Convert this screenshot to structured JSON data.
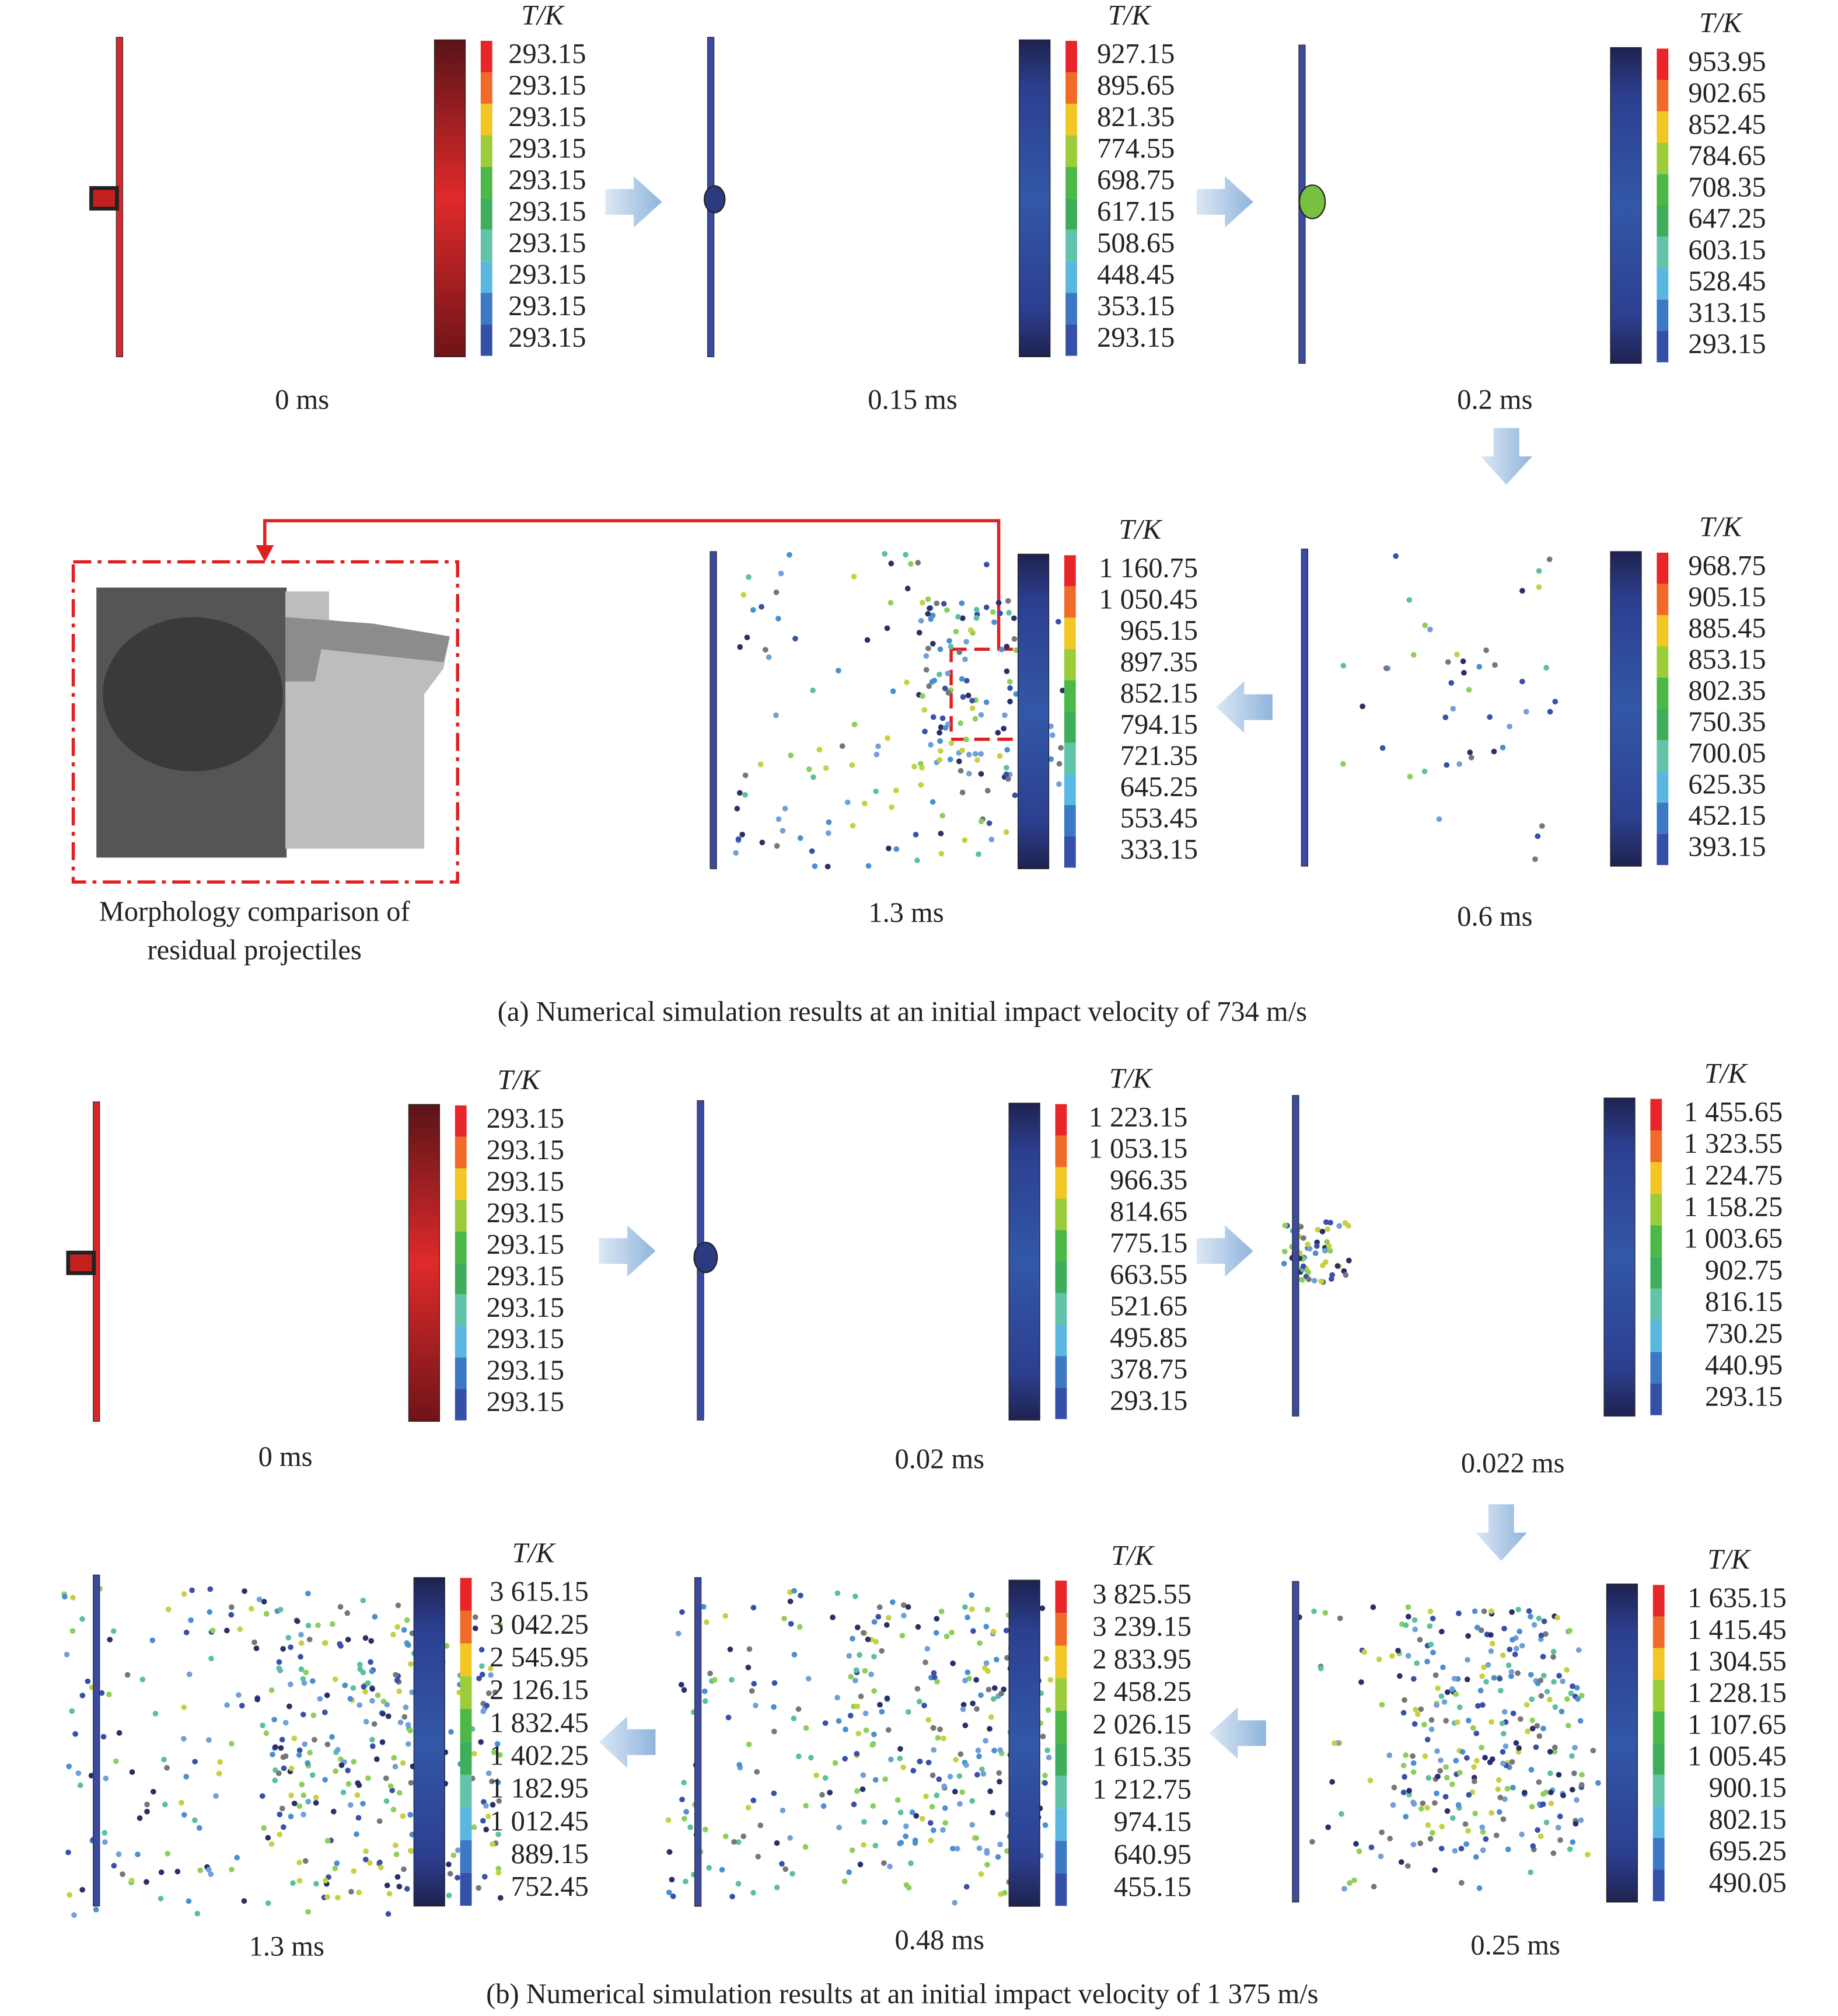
{
  "panels": [
    {
      "caption": "(a) Numerical simulation results at an initial impact velocity of 734 m/s",
      "morphology_caption": [
        "Morphology comparison of",
        "residual projectiles"
      ],
      "frames": [
        {
          "time": "0 ms",
          "legend_title": "T/K",
          "legend_values": [
            "293.15",
            "293.15",
            "293.15",
            "293.15",
            "293.15",
            "293.15",
            "293.15",
            "293.15",
            "293.15",
            "293.15"
          ]
        },
        {
          "time": "0.15 ms",
          "legend_title": "T/K",
          "legend_values": [
            "927.15",
            "895.65",
            "821.35",
            "774.55",
            "698.75",
            "617.15",
            "508.65",
            "448.45",
            "353.15",
            "293.15"
          ]
        },
        {
          "time": "0.2 ms",
          "legend_title": "T/K",
          "legend_values": [
            "953.95",
            "902.65",
            "852.45",
            "784.65",
            "708.35",
            "647.25",
            "603.15",
            "528.45",
            "313.15",
            "293.15"
          ]
        },
        {
          "time": "0.6 ms",
          "legend_title": "T/K",
          "legend_values": [
            "968.75",
            "905.15",
            "885.45",
            "853.15",
            "802.35",
            "750.35",
            "700.05",
            "625.35",
            "452.15",
            "393.15"
          ]
        },
        {
          "time": "1.3 ms",
          "legend_title": "T/K",
          "legend_values": [
            "1 160.75",
            "1 050.45",
            "965.15",
            "897.35",
            "852.15",
            "794.15",
            "721.35",
            "645.25",
            "553.45",
            "333.15"
          ]
        }
      ]
    },
    {
      "caption": "(b) Numerical simulation results at an initial impact velocity of 1 375 m/s",
      "frames": [
        {
          "time": "0 ms",
          "legend_title": "T/K",
          "legend_values": [
            "293.15",
            "293.15",
            "293.15",
            "293.15",
            "293.15",
            "293.15",
            "293.15",
            "293.15",
            "293.15",
            "293.15"
          ]
        },
        {
          "time": "0.02 ms",
          "legend_title": "T/K",
          "legend_values": [
            "1 223.15",
            "1 053.15",
            "966.35",
            "814.65",
            "775.15",
            "663.55",
            "521.65",
            "495.85",
            "378.75",
            "293.15"
          ]
        },
        {
          "time": "0.022 ms",
          "legend_title": "T/K",
          "legend_values": [
            "1 455.65",
            "1 323.55",
            "1 224.75",
            "1 158.25",
            "1 003.65",
            "902.75",
            "816.15",
            "730.25",
            "440.95",
            "293.15"
          ]
        },
        {
          "time": "0.25 ms",
          "legend_title": "T/K",
          "legend_values": [
            "1 635.15",
            "1 415.45",
            "1 304.55",
            "1 228.15",
            "1 107.65",
            "1 005.45",
            "900.15",
            "802.15",
            "695.25",
            "490.05"
          ]
        },
        {
          "time": "0.48 ms",
          "legend_title": "T/K",
          "legend_values": [
            "3 825.55",
            "3 239.15",
            "2 833.95",
            "2 458.25",
            "2 026.15",
            "1 615.35",
            "1 212.75",
            "974.15",
            "640.95",
            "455.15"
          ]
        },
        {
          "time": "1.3 ms",
          "legend_title": "T/K",
          "legend_values": [
            "3 615.15",
            "3 042.25",
            "2 545.95",
            "2 126.15",
            "1 832.45",
            "1 402.25",
            "1 182.95",
            "1 012.45",
            "889.15",
            "752.45"
          ]
        }
      ]
    }
  ]
}
